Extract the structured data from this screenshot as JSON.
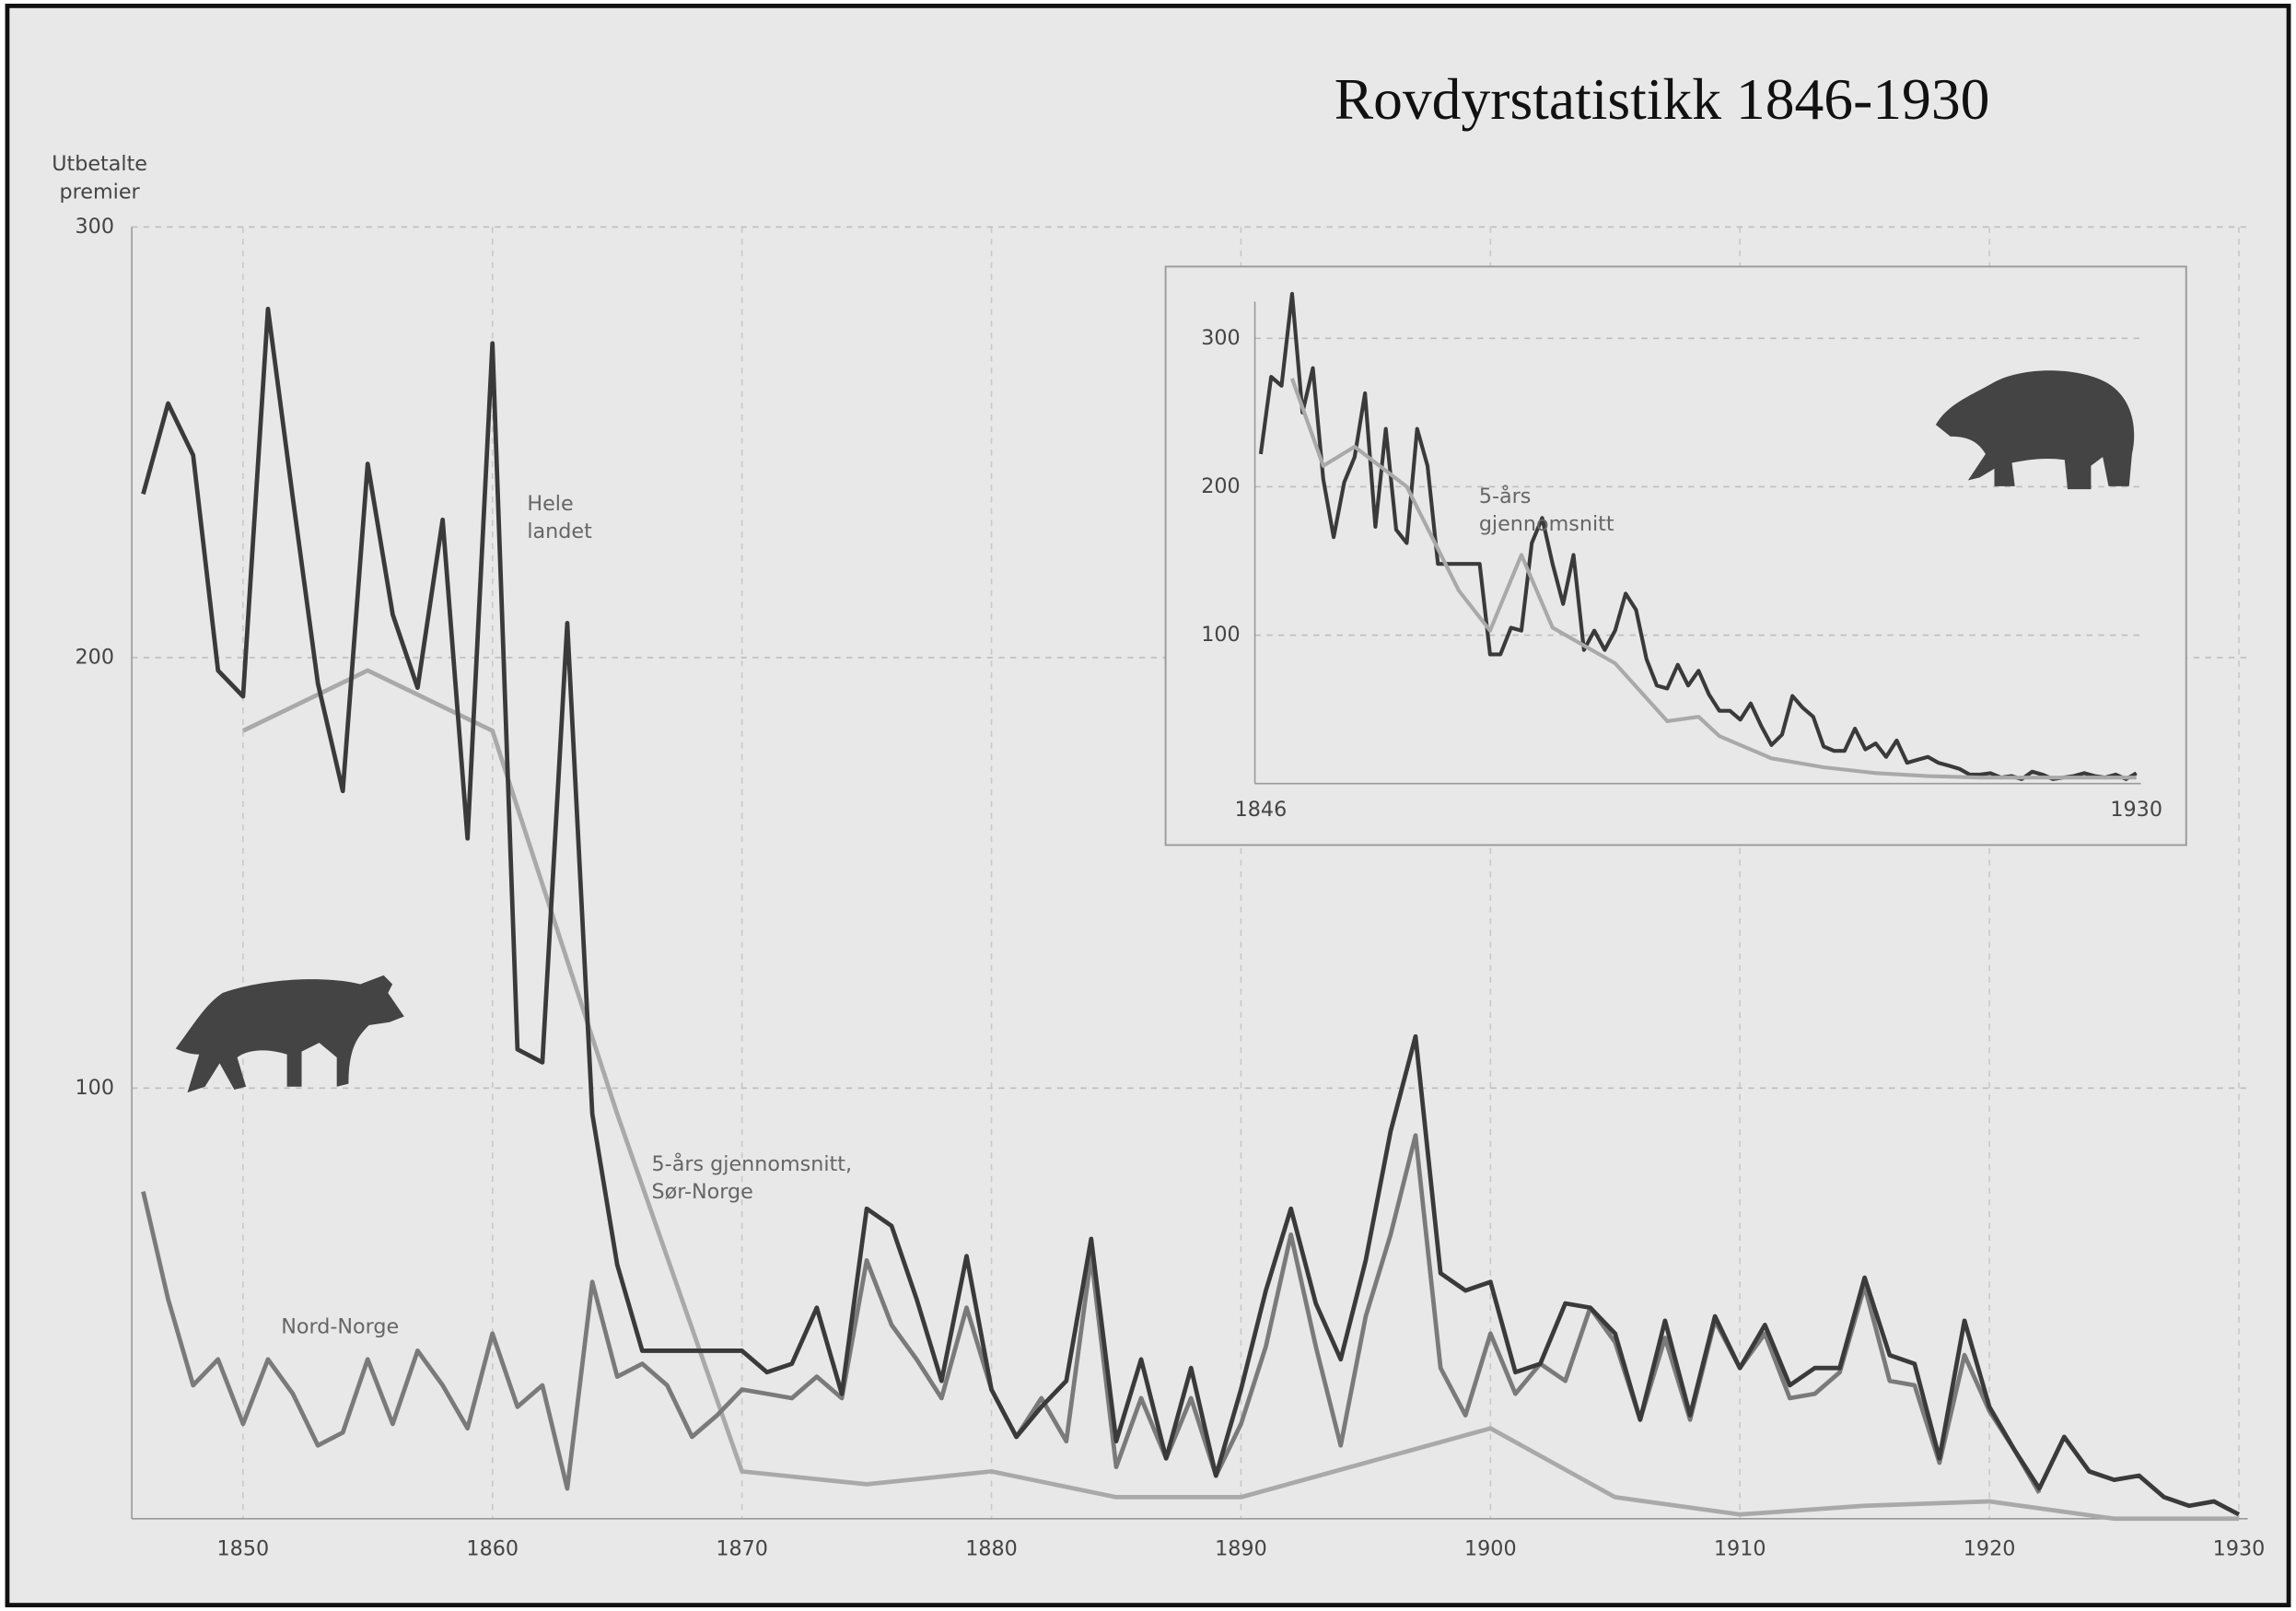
{
  "chart_data": [
    {
      "type": "line",
      "title": "Rovdyrstatistikk 1846-1930",
      "ylabel": "Utbetalte premier",
      "x": [
        1846,
        1847,
        1848,
        1849,
        1850,
        1851,
        1852,
        1853,
        1854,
        1855,
        1856,
        1857,
        1858,
        1859,
        1860,
        1861,
        1862,
        1863,
        1864,
        1865,
        1866,
        1867,
        1868,
        1869,
        1870,
        1871,
        1872,
        1873,
        1874,
        1875,
        1876,
        1877,
        1878,
        1879,
        1880,
        1881,
        1882,
        1883,
        1884,
        1885,
        1886,
        1887,
        1888,
        1889,
        1890,
        1891,
        1892,
        1893,
        1894,
        1895,
        1896,
        1897,
        1898,
        1899,
        1900,
        1901,
        1902,
        1903,
        1904,
        1905,
        1906,
        1907,
        1908,
        1909,
        1910,
        1911,
        1912,
        1913,
        1914,
        1915,
        1916,
        1917,
        1918,
        1919,
        1920,
        1921,
        1922,
        1923,
        1924,
        1925,
        1926,
        1927,
        1928,
        1929,
        1930
      ],
      "series": [
        {
          "name": "5-års gjennomsnitt, Sør-Norge",
          "color": "#a9a9a9",
          "x": [
            1850,
            1855,
            1860,
            1865,
            1870,
            1875,
            1880,
            1885,
            1890,
            1895,
            1900,
            1905,
            1910,
            1915,
            1920,
            1925,
            1930
          ],
          "values": [
            183,
            197,
            183,
            94,
            11,
            8,
            11,
            5,
            5,
            13,
            21,
            5,
            1,
            3,
            4,
            0,
            0
          ]
        },
        {
          "name": "Nord-Norge",
          "color": "#7a7a7a",
          "values": [
            76,
            51,
            31,
            37,
            22,
            37,
            29,
            17,
            20,
            37,
            22,
            39,
            31,
            21,
            43,
            26,
            31,
            7,
            55,
            33,
            36,
            31,
            19,
            24,
            30,
            29,
            28,
            33,
            28,
            60,
            45,
            37,
            28,
            49,
            30,
            19,
            28,
            18,
            61,
            12,
            28,
            14,
            28,
            10,
            22,
            40,
            66,
            40,
            17,
            47,
            66,
            89,
            35,
            24,
            43,
            29,
            36,
            32,
            49,
            41,
            23,
            42,
            23,
            46,
            35,
            43,
            28,
            29,
            34,
            54,
            32,
            31,
            13,
            38,
            25,
            16,
            6,
            null,
            null,
            null,
            null,
            null,
            null,
            null,
            null
          ]
        },
        {
          "name": "Hele landet",
          "color": "#3a3a3a",
          "values": [
            238,
            259,
            247,
            197,
            191,
            281,
            237,
            194,
            169,
            245,
            210,
            193,
            232,
            158,
            273,
            109,
            106,
            208,
            94,
            59,
            39,
            39,
            39,
            39,
            39,
            34,
            36,
            49,
            29,
            72,
            68,
            51,
            32,
            61,
            30,
            19,
            26,
            32,
            65,
            18,
            37,
            14,
            35,
            10,
            30,
            53,
            72,
            50,
            37,
            60,
            90,
            112,
            57,
            53,
            55,
            34,
            36,
            50,
            49,
            43,
            23,
            46,
            24,
            47,
            35,
            45,
            31,
            35,
            35,
            56,
            38,
            36,
            14,
            46,
            26,
            16,
            7,
            19,
            11,
            9,
            10,
            5,
            3,
            4,
            1
          ]
        }
      ],
      "xlim": [
        1846,
        1930
      ],
      "ylim": [
        0,
        300
      ],
      "xticks": [
        1850,
        1860,
        1870,
        1880,
        1890,
        1900,
        1910,
        1920,
        1930
      ],
      "yticks": [
        100,
        200,
        300
      ],
      "grid": true
    },
    {
      "type": "line",
      "x": [
        1846,
        1847,
        1848,
        1849,
        1850,
        1851,
        1852,
        1853,
        1854,
        1855,
        1856,
        1857,
        1858,
        1859,
        1860,
        1861,
        1862,
        1863,
        1864,
        1865,
        1866,
        1867,
        1868,
        1869,
        1870,
        1871,
        1872,
        1873,
        1874,
        1875,
        1876,
        1877,
        1878,
        1879,
        1880,
        1881,
        1882,
        1883,
        1884,
        1885,
        1886,
        1887,
        1888,
        1889,
        1890,
        1891,
        1892,
        1893,
        1894,
        1895,
        1896,
        1897,
        1898,
        1899,
        1900,
        1901,
        1902,
        1903,
        1904,
        1905,
        1906,
        1907,
        1908,
        1909,
        1910,
        1911,
        1912,
        1913,
        1914,
        1915,
        1916,
        1917,
        1918,
        1919,
        1920,
        1921,
        1922,
        1923,
        1924,
        1925,
        1926,
        1927,
        1928,
        1929,
        1930
      ],
      "series": [
        {
          "color": "#3a3a3a",
          "values": [
            222,
            274,
            268,
            330,
            250,
            280,
            205,
            166,
            203,
            220,
            263,
            173,
            239,
            171,
            162,
            239,
            214,
            148,
            148,
            148,
            148,
            148,
            87,
            87,
            105,
            103,
            162,
            179,
            148,
            121,
            154,
            90,
            103,
            90,
            103,
            128,
            117,
            84,
            66,
            64,
            80,
            66,
            76,
            60,
            49,
            49,
            43,
            54,
            39,
            26,
            33,
            59,
            51,
            45,
            25,
            22,
            22,
            37,
            23,
            27,
            18,
            29,
            14,
            16,
            18,
            14,
            12,
            10,
            6,
            6,
            7,
            4,
            5,
            3,
            8,
            6,
            3,
            4,
            5,
            7,
            5,
            4,
            6,
            3,
            7
          ]
        },
        {
          "name": "5-års gjennomsnitt",
          "color": "#a9a9a9",
          "x": [
            1849,
            1852,
            1855,
            1860,
            1865,
            1868,
            1871,
            1874,
            1880,
            1885,
            1888,
            1890,
            1895,
            1900,
            1905,
            1910,
            1915,
            1920,
            1925,
            1930
          ],
          "values": [
            273,
            214,
            227,
            200,
            130,
            103,
            154,
            105,
            81,
            42,
            45,
            32,
            17,
            11,
            7,
            5,
            4,
            4,
            4,
            4
          ]
        }
      ],
      "xlim": [
        1846,
        1930
      ],
      "ylim": [
        0,
        330
      ],
      "xticks": [
        1846,
        1930
      ],
      "yticks": [
        100,
        200,
        300
      ],
      "grid": true
    }
  ]
}
